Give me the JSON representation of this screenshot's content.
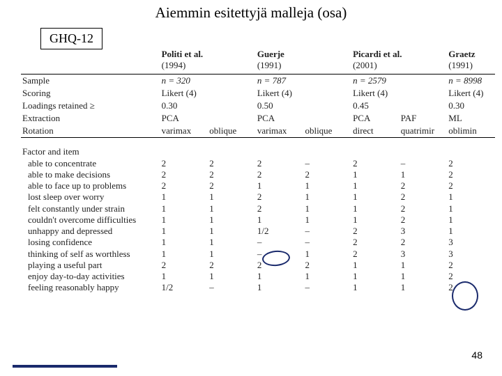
{
  "title": "Aiemmin esitettyjä malleja (osa)",
  "tag": "GHQ-12",
  "studies": [
    {
      "author": "Politi et al.",
      "year": "(1994)"
    },
    {
      "author": "Guerje",
      "year": "(1991)"
    },
    {
      "author": "Picardi et al.",
      "year": "(2001)"
    },
    {
      "author": "Graetz",
      "year": "(1991)"
    }
  ],
  "meta_labels": [
    "Sample",
    "Scoring",
    "Loadings retained ≥",
    "Extraction",
    "Rotation"
  ],
  "meta_rows": [
    [
      "n = 320",
      "",
      "n = 787",
      "",
      "n = 2579",
      "",
      "n = 8998"
    ],
    [
      "Likert (4)",
      "",
      "Likert (4)",
      "",
      "Likert (4)",
      "",
      "Likert (4)"
    ],
    [
      "0.30",
      "",
      "0.50",
      "",
      "0.45",
      "",
      "0.30"
    ],
    [
      "PCA",
      "",
      "PCA",
      "",
      "PCA",
      "PAF",
      "ML"
    ],
    [
      "varimax",
      "oblique",
      "varimax",
      "oblique",
      "direct",
      "quatrimir",
      "oblimin"
    ]
  ],
  "factor_section": "Factor and item",
  "items": [
    {
      "label": "able to concentrate",
      "v": [
        "2",
        "2",
        "2",
        "–",
        "2",
        "–",
        "2"
      ]
    },
    {
      "label": "able to make decisions",
      "v": [
        "2",
        "2",
        "2",
        "2",
        "1",
        "1",
        "2"
      ]
    },
    {
      "label": "able to face up to problems",
      "v": [
        "2",
        "2",
        "1",
        "1",
        "1",
        "2",
        "2"
      ]
    },
    {
      "label": "lost sleep over worry",
      "v": [
        "1",
        "1",
        "2",
        "1",
        "1",
        "2",
        "1"
      ]
    },
    {
      "label": "felt constantly under strain",
      "v": [
        "1",
        "1",
        "2",
        "1",
        "1",
        "2",
        "1"
      ]
    },
    {
      "label": "couldn't overcome difficulties",
      "v": [
        "1",
        "1",
        "1",
        "1",
        "1",
        "2",
        "1"
      ]
    },
    {
      "label": "unhappy and depressed",
      "v": [
        "1",
        "1",
        "1/2",
        "–",
        "2",
        "3",
        "1"
      ]
    },
    {
      "label": "losing confidence",
      "v": [
        "1",
        "1",
        "–",
        "–",
        "2",
        "2",
        "3"
      ]
    },
    {
      "label": "thinking of self as worthless",
      "v": [
        "1",
        "1",
        "–",
        "1",
        "2",
        "3",
        "3"
      ]
    },
    {
      "label": "playing a useful part",
      "v": [
        "2",
        "2",
        "2",
        "2",
        "1",
        "1",
        "2"
      ]
    },
    {
      "label": "enjoy day-to-day activities",
      "v": [
        "1",
        "1",
        "1",
        "1",
        "1",
        "1",
        "2"
      ]
    },
    {
      "label": "feeling reasonably happy",
      "v": [
        "1/2",
        "–",
        "1",
        "–",
        "1",
        "1",
        "2"
      ]
    }
  ],
  "page_number": "48",
  "colors": {
    "accent": "#1a2a6c",
    "text": "#000000",
    "bg": "#ffffff"
  }
}
